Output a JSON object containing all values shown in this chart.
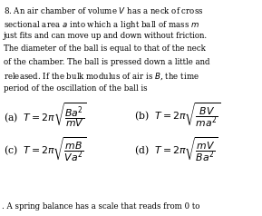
{
  "question_num": "8.",
  "q_line1": "An air chamber of volume $V$ has a neck of cross",
  "q_line2": "sectional area $a$ into which a light ball of mass $m$",
  "q_line3": "just fits and can move up and down without friction.",
  "q_line4": "The diameter of the ball is equal to that of the neck",
  "q_line5": "of the chamber. The ball is pressed down a little and",
  "q_line6": "released. If the bulk modulus of air is $B$, the time",
  "q_line7": "period of the oscillation of the ball is",
  "opt_a_label": "(a)",
  "opt_a_formula": "$T = 2\\pi\\sqrt{\\dfrac{Ba^2}{mV}}$",
  "opt_b_label": "(b)",
  "opt_b_formula": "$T = 2\\pi\\sqrt{\\dfrac{BV}{ma^2}}$",
  "opt_c_label": "(c)",
  "opt_c_formula": "$T = 2\\pi\\sqrt{\\dfrac{mB}{Va^2}}$",
  "opt_d_label": "(d)",
  "opt_d_formula": "$T = 2\\pi\\sqrt{\\dfrac{mV}{Ba^2}}$",
  "footer": ". A spring balance has a scale that reads from 0 to",
  "bg_color": "#ffffff",
  "text_color": "#000000",
  "body_fs": 6.2,
  "formula_fs": 7.8,
  "footer_fs": 6.2
}
